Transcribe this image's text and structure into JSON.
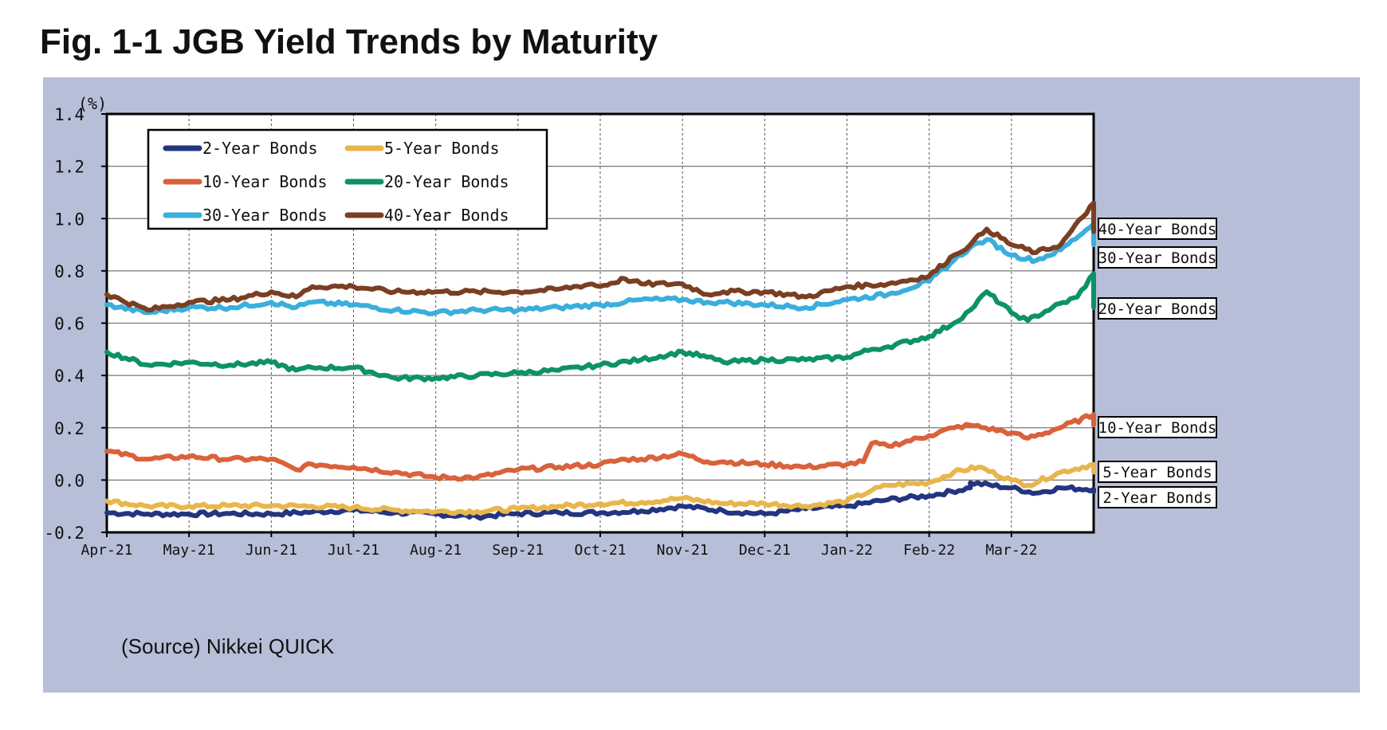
{
  "figure": {
    "title": "Fig. 1-1 JGB Yield Trends by Maturity",
    "source": "(Source) Nikkei QUICK",
    "panel_color": "#b7bfd8"
  },
  "chart_data": {
    "type": "line",
    "title": "Fig. 1-1 JGB Yield Trends by Maturity",
    "ylabel": "(%)",
    "xlabel": "",
    "ylim": [
      -0.2,
      1.4
    ],
    "yticks": [
      -0.2,
      0.0,
      0.2,
      0.4,
      0.6,
      0.8,
      1.0,
      1.2,
      1.4
    ],
    "ytick_labels": [
      "-0.2",
      "0.0",
      "0.2",
      "0.4",
      "0.6",
      "0.8",
      "1.0",
      "1.2",
      "1.4"
    ],
    "xlim": [
      0,
      12
    ],
    "x_unit": "months since Apr-21",
    "xticks": [
      0,
      1,
      2,
      3,
      4,
      5,
      6,
      7,
      8,
      9,
      10,
      11
    ],
    "xtick_labels": [
      "Apr-21",
      "May-21",
      "Jun-21",
      "Jul-21",
      "Aug-21",
      "Sep-21",
      "Oct-21",
      "Nov-21",
      "Dec-21",
      "Jan-22",
      "Feb-22",
      "Mar-22"
    ],
    "grid": true,
    "legend_position": "top-left",
    "series": [
      {
        "name": "2-Year Bonds",
        "end_label": "2-Year Bonds",
        "color": "#23357f",
        "points": [
          [
            0,
            -0.125
          ],
          [
            0.5,
            -0.13
          ],
          [
            1,
            -0.13
          ],
          [
            1.5,
            -0.128
          ],
          [
            2,
            -0.13
          ],
          [
            2.5,
            -0.122
          ],
          [
            3,
            -0.115
          ],
          [
            3.5,
            -0.125
          ],
          [
            4,
            -0.13
          ],
          [
            4.5,
            -0.14
          ],
          [
            5,
            -0.128
          ],
          [
            5.5,
            -0.125
          ],
          [
            6,
            -0.125
          ],
          [
            6.5,
            -0.118
          ],
          [
            7,
            -0.1
          ],
          [
            7.5,
            -0.118
          ],
          [
            8,
            -0.13
          ],
          [
            8.5,
            -0.11
          ],
          [
            9,
            -0.1
          ],
          [
            9.5,
            -0.075
          ],
          [
            10,
            -0.06
          ],
          [
            10.5,
            -0.03
          ],
          [
            10.5,
            -0.01
          ],
          [
            11,
            -0.03
          ],
          [
            11.3,
            -0.05
          ],
          [
            11.6,
            -0.03
          ],
          [
            12,
            -0.035
          ],
          [
            12.0,
            -0.045
          ]
        ]
      },
      {
        "name": "5-Year Bonds",
        "end_label": "5-Year Bonds",
        "color": "#e8b64b",
        "points": [
          [
            0,
            -0.08
          ],
          [
            0.5,
            -0.1
          ],
          [
            1,
            -0.1
          ],
          [
            1.5,
            -0.098
          ],
          [
            2,
            -0.098
          ],
          [
            2.5,
            -0.1
          ],
          [
            3,
            -0.105
          ],
          [
            3.5,
            -0.115
          ],
          [
            4,
            -0.12
          ],
          [
            4.5,
            -0.12
          ],
          [
            5,
            -0.11
          ],
          [
            5.5,
            -0.1
          ],
          [
            6,
            -0.09
          ],
          [
            6.5,
            -0.085
          ],
          [
            7,
            -0.07
          ],
          [
            7.5,
            -0.09
          ],
          [
            8,
            -0.09
          ],
          [
            8.5,
            -0.1
          ],
          [
            9,
            -0.08
          ],
          [
            9.3,
            -0.04
          ],
          [
            9.5,
            -0.02
          ],
          [
            10,
            -0.01
          ],
          [
            10.3,
            0.03
          ],
          [
            10.6,
            0.05
          ],
          [
            11,
            0.0
          ],
          [
            11.2,
            -0.02
          ],
          [
            11.6,
            0.03
          ],
          [
            12,
            0.06
          ],
          [
            12.0,
            0.03
          ]
        ]
      },
      {
        "name": "10-Year Bonds",
        "end_label": "10-Year Bonds",
        "color": "#d9623b",
        "points": [
          [
            0,
            0.11
          ],
          [
            0.5,
            0.08
          ],
          [
            1,
            0.09
          ],
          [
            1.5,
            0.08
          ],
          [
            2,
            0.08
          ],
          [
            2.3,
            0.04
          ],
          [
            2.5,
            0.06
          ],
          [
            3,
            0.05
          ],
          [
            3.5,
            0.03
          ],
          [
            4,
            0.01
          ],
          [
            4.5,
            0.01
          ],
          [
            5,
            0.04
          ],
          [
            5.5,
            0.05
          ],
          [
            6,
            0.06
          ],
          [
            6.3,
            0.08
          ],
          [
            6.5,
            0.08
          ],
          [
            7,
            0.1
          ],
          [
            7.3,
            0.07
          ],
          [
            7.5,
            0.07
          ],
          [
            8,
            0.06
          ],
          [
            8.5,
            0.05
          ],
          [
            9,
            0.06
          ],
          [
            9.2,
            0.07
          ],
          [
            9.3,
            0.14
          ],
          [
            9.5,
            0.13
          ],
          [
            10,
            0.17
          ],
          [
            10.3,
            0.2
          ],
          [
            10.5,
            0.21
          ],
          [
            11,
            0.18
          ],
          [
            11.2,
            0.16
          ],
          [
            11.5,
            0.19
          ],
          [
            12,
            0.25
          ],
          [
            12.0,
            0.21
          ]
        ]
      },
      {
        "name": "20-Year Bonds",
        "end_label": "20-Year Bonds",
        "color": "#0d9168",
        "points": [
          [
            0,
            0.49
          ],
          [
            0.5,
            0.44
          ],
          [
            1,
            0.45
          ],
          [
            1.5,
            0.44
          ],
          [
            2,
            0.45
          ],
          [
            2.3,
            0.42
          ],
          [
            2.5,
            0.43
          ],
          [
            3,
            0.43
          ],
          [
            3.5,
            0.39
          ],
          [
            4,
            0.39
          ],
          [
            4.5,
            0.4
          ],
          [
            5,
            0.41
          ],
          [
            5.5,
            0.42
          ],
          [
            6,
            0.44
          ],
          [
            6.5,
            0.46
          ],
          [
            7,
            0.49
          ],
          [
            7.3,
            0.47
          ],
          [
            7.5,
            0.45
          ],
          [
            8,
            0.46
          ],
          [
            8.5,
            0.46
          ],
          [
            9,
            0.47
          ],
          [
            9.3,
            0.5
          ],
          [
            9.5,
            0.51
          ],
          [
            10,
            0.55
          ],
          [
            10.3,
            0.6
          ],
          [
            10.5,
            0.65
          ],
          [
            10.7,
            0.72
          ],
          [
            11,
            0.64
          ],
          [
            11.2,
            0.61
          ],
          [
            11.5,
            0.66
          ],
          [
            11.8,
            0.7
          ],
          [
            12,
            0.79
          ],
          [
            12.0,
            0.66
          ]
        ]
      },
      {
        "name": "30-Year Bonds",
        "end_label": "30-Year Bonds",
        "color": "#3aaedc",
        "points": [
          [
            0,
            0.67
          ],
          [
            0.5,
            0.64
          ],
          [
            1,
            0.66
          ],
          [
            1.5,
            0.66
          ],
          [
            2,
            0.68
          ],
          [
            2.3,
            0.66
          ],
          [
            2.5,
            0.68
          ],
          [
            3,
            0.67
          ],
          [
            3.5,
            0.65
          ],
          [
            4,
            0.64
          ],
          [
            4.5,
            0.65
          ],
          [
            5,
            0.65
          ],
          [
            5.5,
            0.66
          ],
          [
            6,
            0.67
          ],
          [
            6.3,
            0.68
          ],
          [
            6.5,
            0.69
          ],
          [
            7,
            0.69
          ],
          [
            7.3,
            0.68
          ],
          [
            7.5,
            0.68
          ],
          [
            8,
            0.67
          ],
          [
            8.5,
            0.66
          ],
          [
            9,
            0.69
          ],
          [
            9.5,
            0.71
          ],
          [
            10,
            0.76
          ],
          [
            10.3,
            0.84
          ],
          [
            10.5,
            0.89
          ],
          [
            10.7,
            0.92
          ],
          [
            11,
            0.86
          ],
          [
            11.3,
            0.84
          ],
          [
            11.6,
            0.88
          ],
          [
            12,
            0.98
          ],
          [
            12.0,
            0.9
          ]
        ]
      },
      {
        "name": "40-Year Bonds",
        "end_label": "40-Year Bonds",
        "color": "#7a3f23",
        "points": [
          [
            0,
            0.71
          ],
          [
            0.5,
            0.65
          ],
          [
            1,
            0.68
          ],
          [
            1.5,
            0.69
          ],
          [
            2,
            0.72
          ],
          [
            2.3,
            0.7
          ],
          [
            2.5,
            0.74
          ],
          [
            3,
            0.74
          ],
          [
            3.5,
            0.72
          ],
          [
            4,
            0.72
          ],
          [
            4.5,
            0.72
          ],
          [
            5,
            0.72
          ],
          [
            5.5,
            0.73
          ],
          [
            5.9,
            0.75
          ],
          [
            6,
            0.74
          ],
          [
            6.3,
            0.77
          ],
          [
            6.5,
            0.75
          ],
          [
            7,
            0.75
          ],
          [
            7.3,
            0.71
          ],
          [
            7.5,
            0.72
          ],
          [
            8,
            0.72
          ],
          [
            8.5,
            0.7
          ],
          [
            9,
            0.74
          ],
          [
            9.5,
            0.75
          ],
          [
            10,
            0.78
          ],
          [
            10.3,
            0.86
          ],
          [
            10.5,
            0.9
          ],
          [
            10.7,
            0.96
          ],
          [
            11,
            0.9
          ],
          [
            11.3,
            0.87
          ],
          [
            11.6,
            0.9
          ],
          [
            12,
            1.06
          ],
          [
            12.0,
            0.95
          ]
        ]
      }
    ]
  }
}
